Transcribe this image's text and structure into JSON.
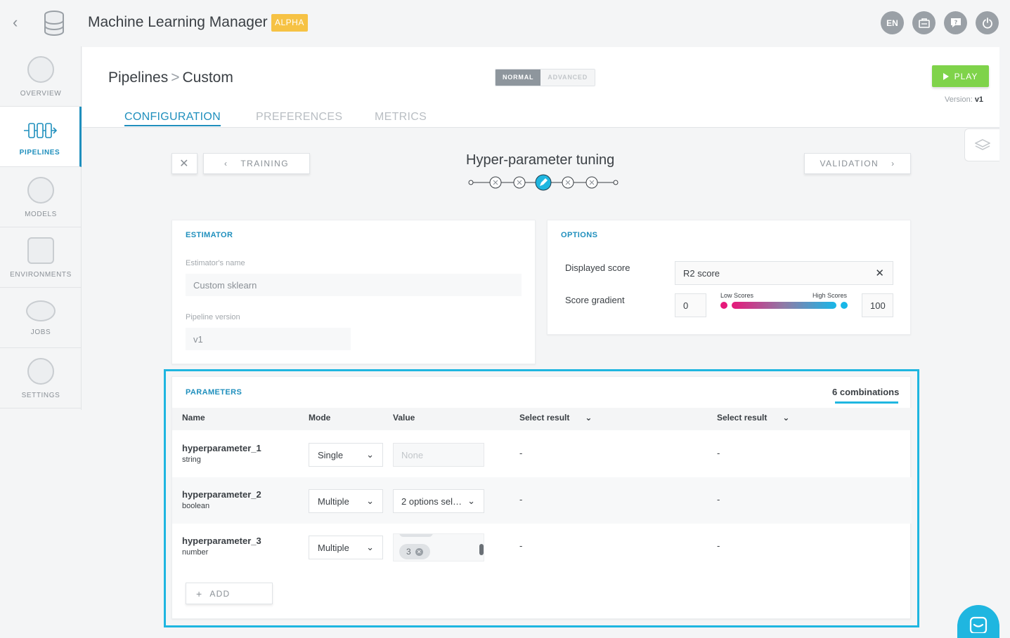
{
  "app": {
    "title": "Machine Learning Manager",
    "badge": "ALPHA"
  },
  "topbar": {
    "lang": "EN"
  },
  "sidebar": {
    "items": [
      "OVERVIEW",
      "PIPELINES",
      "MODELS",
      "ENVIRONMENTS",
      "JOBS",
      "SETTINGS"
    ]
  },
  "breadcrumb": {
    "root": "Pipelines",
    "sep": ">",
    "current": "Custom"
  },
  "mode": {
    "normal": "NORMAL",
    "advanced": "ADVANCED"
  },
  "play": {
    "label": "PLAY"
  },
  "version": {
    "label": "Version:",
    "value": "v1"
  },
  "tabs": [
    "CONFIGURATION",
    "PREFERENCES",
    "METRICS"
  ],
  "steps": {
    "prev": "TRAINING",
    "next": "VALIDATION",
    "title": "Hyper-parameter tuning"
  },
  "estimator": {
    "title": "ESTIMATOR",
    "name_label": "Estimator's name",
    "name_value": "Custom sklearn",
    "version_label": "Pipeline version",
    "version_value": "v1"
  },
  "options": {
    "title": "OPTIONS",
    "displayed_label": "Displayed score",
    "displayed_value": "R2 score",
    "gradient_label": "Score gradient",
    "min": "0",
    "max": "100",
    "low": "Low Scores",
    "high": "High Scores",
    "colors": {
      "low": "#e6197a",
      "high": "#18b7e8"
    }
  },
  "parameters": {
    "title": "PARAMETERS",
    "combinations": "6 combinations",
    "headers": {
      "name": "Name",
      "mode": "Mode",
      "value": "Value",
      "result1": "Select result",
      "result2": "Select result"
    },
    "rows": [
      {
        "name": "hyperparameter_1",
        "type": "string",
        "mode": "Single",
        "value": "None",
        "r1": "-",
        "r2": "-"
      },
      {
        "name": "hyperparameter_2",
        "type": "boolean",
        "mode": "Multiple",
        "value": "2 options sel…",
        "r1": "-",
        "r2": "-"
      },
      {
        "name": "hyperparameter_3",
        "type": "number",
        "mode": "Multiple",
        "value": "3",
        "r1": "-",
        "r2": "-"
      }
    ],
    "add": "ADD"
  }
}
